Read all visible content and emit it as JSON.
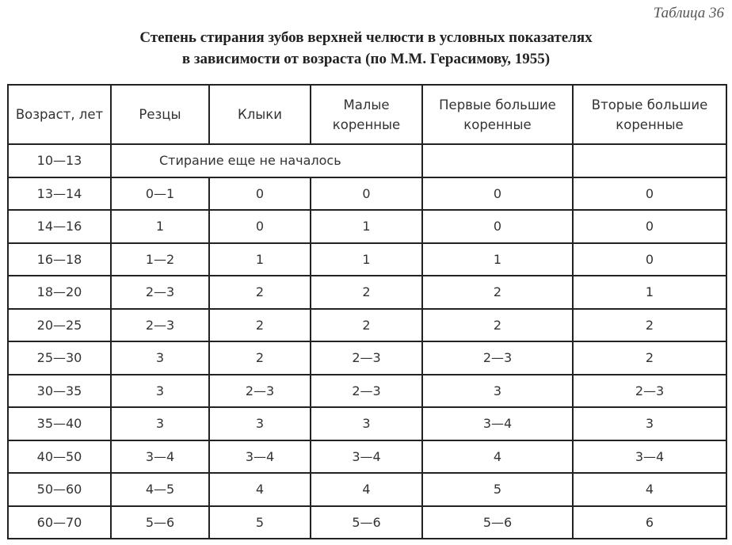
{
  "table_number": "Таблица 36",
  "title_line1": "Степень стирания зубов верхней челюсти в условных показателях",
  "title_line2": "в зависимости от возраста (по М.М. Герасимову, 1955)",
  "columns": [
    "Возраст, лет",
    "Резцы",
    "Клыки",
    "Малые коренные",
    "Первые большие коренные",
    "Вторые большие коренные"
  ],
  "first_row": {
    "age": "10—13",
    "note": "Стирание еще не началось",
    "col5": "",
    "col6": ""
  },
  "rows": [
    [
      "13—14",
      "0—1",
      "0",
      "0",
      "0",
      "0"
    ],
    [
      "14—16",
      "1",
      "0",
      "1",
      "0",
      "0"
    ],
    [
      "16—18",
      "1—2",
      "1",
      "1",
      "1",
      "0"
    ],
    [
      "18—20",
      "2—3",
      "2",
      "2",
      "2",
      "1"
    ],
    [
      "20—25",
      "2—3",
      "2",
      "2",
      "2",
      "2"
    ],
    [
      "25—30",
      "3",
      "2",
      "2—3",
      "2—3",
      "2"
    ],
    [
      "30—35",
      "3",
      "2—3",
      "2—3",
      "3",
      "2—3"
    ],
    [
      "35—40",
      "3",
      "3",
      "3",
      "3—4",
      "3"
    ],
    [
      "40—50",
      "3—4",
      "3—4",
      "3—4",
      "4",
      "3—4"
    ],
    [
      "50—60",
      "4—5",
      "4",
      "4",
      "5",
      "4"
    ],
    [
      "60—70",
      "5—6",
      "5",
      "5—6",
      "5—6",
      "6"
    ]
  ]
}
